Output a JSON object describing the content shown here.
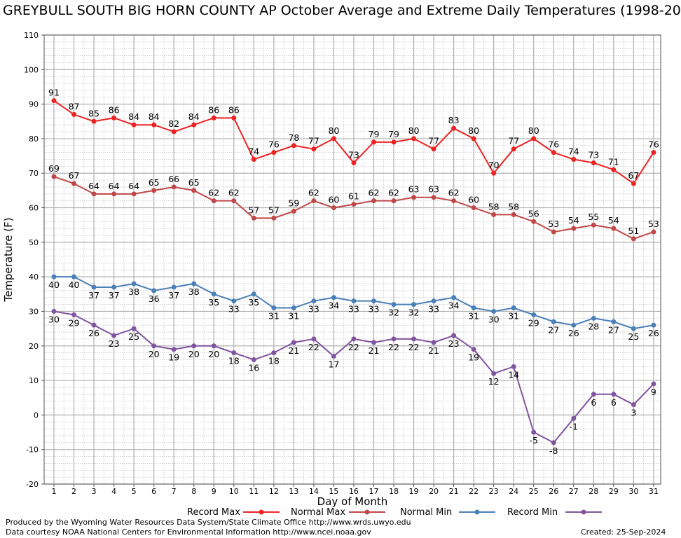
{
  "chart_data": {
    "type": "line",
    "title": "GREYBULL SOUTH BIG HORN COUNTY AP October Average and Extreme Daily Temperatures (1998-20",
    "xlabel": "Day of Month",
    "ylabel": "Temperature (F)",
    "ylim": [
      -20,
      110
    ],
    "y_ticks": [
      "110",
      "100",
      "90",
      "80",
      "70",
      "60",
      "50",
      "40",
      "30",
      "20",
      "10",
      "0",
      "-10",
      "-20"
    ],
    "x": [
      "1",
      "2",
      "3",
      "4",
      "5",
      "6",
      "7",
      "8",
      "9",
      "10",
      "11",
      "12",
      "13",
      "14",
      "15",
      "16",
      "17",
      "18",
      "19",
      "20",
      "21",
      "22",
      "23",
      "24",
      "25",
      "26",
      "27",
      "28",
      "29",
      "30",
      "31"
    ],
    "grid": true,
    "legend_position": "bottom",
    "series": [
      {
        "name": "Record Max",
        "color": "#ee2222",
        "label_pos": "above",
        "values": [
          91,
          87,
          85,
          86,
          84,
          84,
          82,
          84,
          86,
          86,
          74,
          76,
          78,
          77,
          80,
          73,
          79,
          79,
          80,
          77,
          83,
          80,
          70,
          77,
          80,
          76,
          74,
          73,
          71,
          67,
          76
        ]
      },
      {
        "name": "Normal Max",
        "color": "#c04848",
        "label_pos": "above",
        "values": [
          69,
          67,
          64,
          64,
          64,
          65,
          66,
          65,
          62,
          62,
          57,
          57,
          59,
          62,
          60,
          61,
          62,
          62,
          63,
          63,
          62,
          60,
          58,
          58,
          56,
          53,
          54,
          55,
          54,
          51,
          53
        ]
      },
      {
        "name": "Normal Min",
        "color": "#4a7fb8",
        "label_pos": "below",
        "values": [
          40,
          40,
          37,
          37,
          38,
          36,
          37,
          38,
          35,
          33,
          35,
          31,
          31,
          33,
          34,
          33,
          33,
          32,
          32,
          33,
          34,
          31,
          30,
          31,
          29,
          27,
          26,
          28,
          27,
          25,
          26
        ]
      },
      {
        "name": "Record Min",
        "color": "#8055a0",
        "label_pos": "below",
        "values": [
          30,
          29,
          26,
          23,
          25,
          20,
          19,
          20,
          20,
          18,
          16,
          18,
          21,
          22,
          17,
          22,
          21,
          22,
          22,
          21,
          23,
          19,
          12,
          14,
          -5,
          -8,
          -1,
          6,
          6,
          3,
          9
        ]
      }
    ]
  },
  "footer": {
    "left_line1": "Produced by the Wyoming Water Resources Data System/State Climate Office http://www.wrds.uwyo.edu",
    "left_line2": "Data courtesy NOAA National Centers for Environmental Information http://www.ncei.noaa.gov",
    "created": "Created:  25-Sep-2024"
  }
}
